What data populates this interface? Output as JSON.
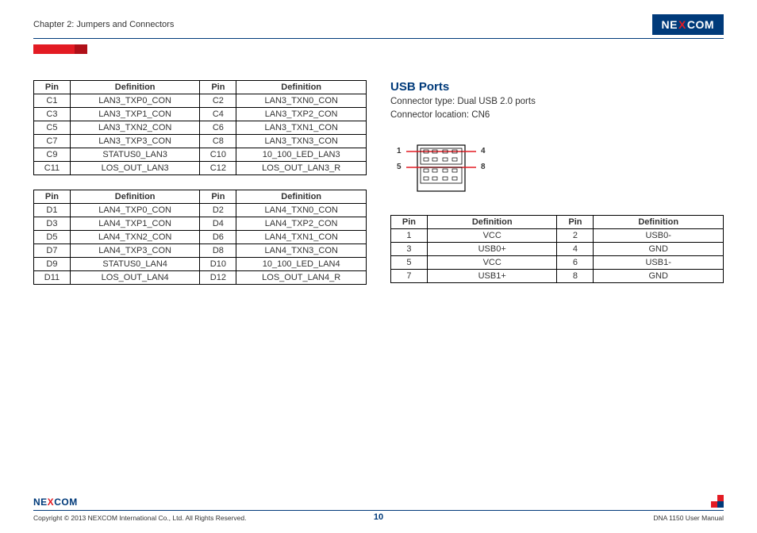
{
  "header": {
    "chapter": "Chapter 2: Jumpers and Connectors",
    "logo_pre": "NE",
    "logo_x": "X",
    "logo_post": "COM"
  },
  "tableC": {
    "headers": [
      "Pin",
      "Definition",
      "Pin",
      "Definition"
    ],
    "rows": [
      [
        "C1",
        "LAN3_TXP0_CON",
        "C2",
        "LAN3_TXN0_CON"
      ],
      [
        "C3",
        "LAN3_TXP1_CON",
        "C4",
        "LAN3_TXP2_CON"
      ],
      [
        "C5",
        "LAN3_TXN2_CON",
        "C6",
        "LAN3_TXN1_CON"
      ],
      [
        "C7",
        "LAN3_TXP3_CON",
        "C8",
        "LAN3_TXN3_CON"
      ],
      [
        "C9",
        "STATUS0_LAN3",
        "C10",
        "10_100_LED_LAN3"
      ],
      [
        "C11",
        "LOS_OUT_LAN3",
        "C12",
        "LOS_OUT_LAN3_R"
      ]
    ]
  },
  "tableD": {
    "headers": [
      "Pin",
      "Definition",
      "Pin",
      "Definition"
    ],
    "rows": [
      [
        "D1",
        "LAN4_TXP0_CON",
        "D2",
        "LAN4_TXN0_CON"
      ],
      [
        "D3",
        "LAN4_TXP1_CON",
        "D4",
        "LAN4_TXP2_CON"
      ],
      [
        "D5",
        "LAN4_TXN2_CON",
        "D6",
        "LAN4_TXN1_CON"
      ],
      [
        "D7",
        "LAN4_TXP3_CON",
        "D8",
        "LAN4_TXN3_CON"
      ],
      [
        "D9",
        "STATUS0_LAN4",
        "D10",
        "10_100_LED_LAN4"
      ],
      [
        "D11",
        "LOS_OUT_LAN4",
        "D12",
        "LOS_OUT_LAN4_R"
      ]
    ]
  },
  "usb": {
    "title": "USB Ports",
    "connector_type": "Connector type: Dual USB 2.0 ports",
    "connector_location": "Connector location: CN6",
    "diagram_labels": {
      "tl": "1",
      "tr": "4",
      "bl": "5",
      "br": "8"
    },
    "table": {
      "headers": [
        "Pin",
        "Definition",
        "Pin",
        "Definition"
      ],
      "rows": [
        [
          "1",
          "VCC",
          "2",
          "USB0-"
        ],
        [
          "3",
          "USB0+",
          "4",
          "GND"
        ],
        [
          "5",
          "VCC",
          "6",
          "USB1-"
        ],
        [
          "7",
          "USB1+",
          "8",
          "GND"
        ]
      ]
    }
  },
  "footer": {
    "copyright": "Copyright © 2013 NEXCOM International Co., Ltd. All Rights Reserved.",
    "page_num": "10",
    "manual": "DNA 1150 User Manual",
    "logo_pre": "NE",
    "logo_x": "X",
    "logo_post": "COM"
  },
  "colors": {
    "brand_blue": "#003a7a",
    "brand_red": "#e31b23"
  }
}
